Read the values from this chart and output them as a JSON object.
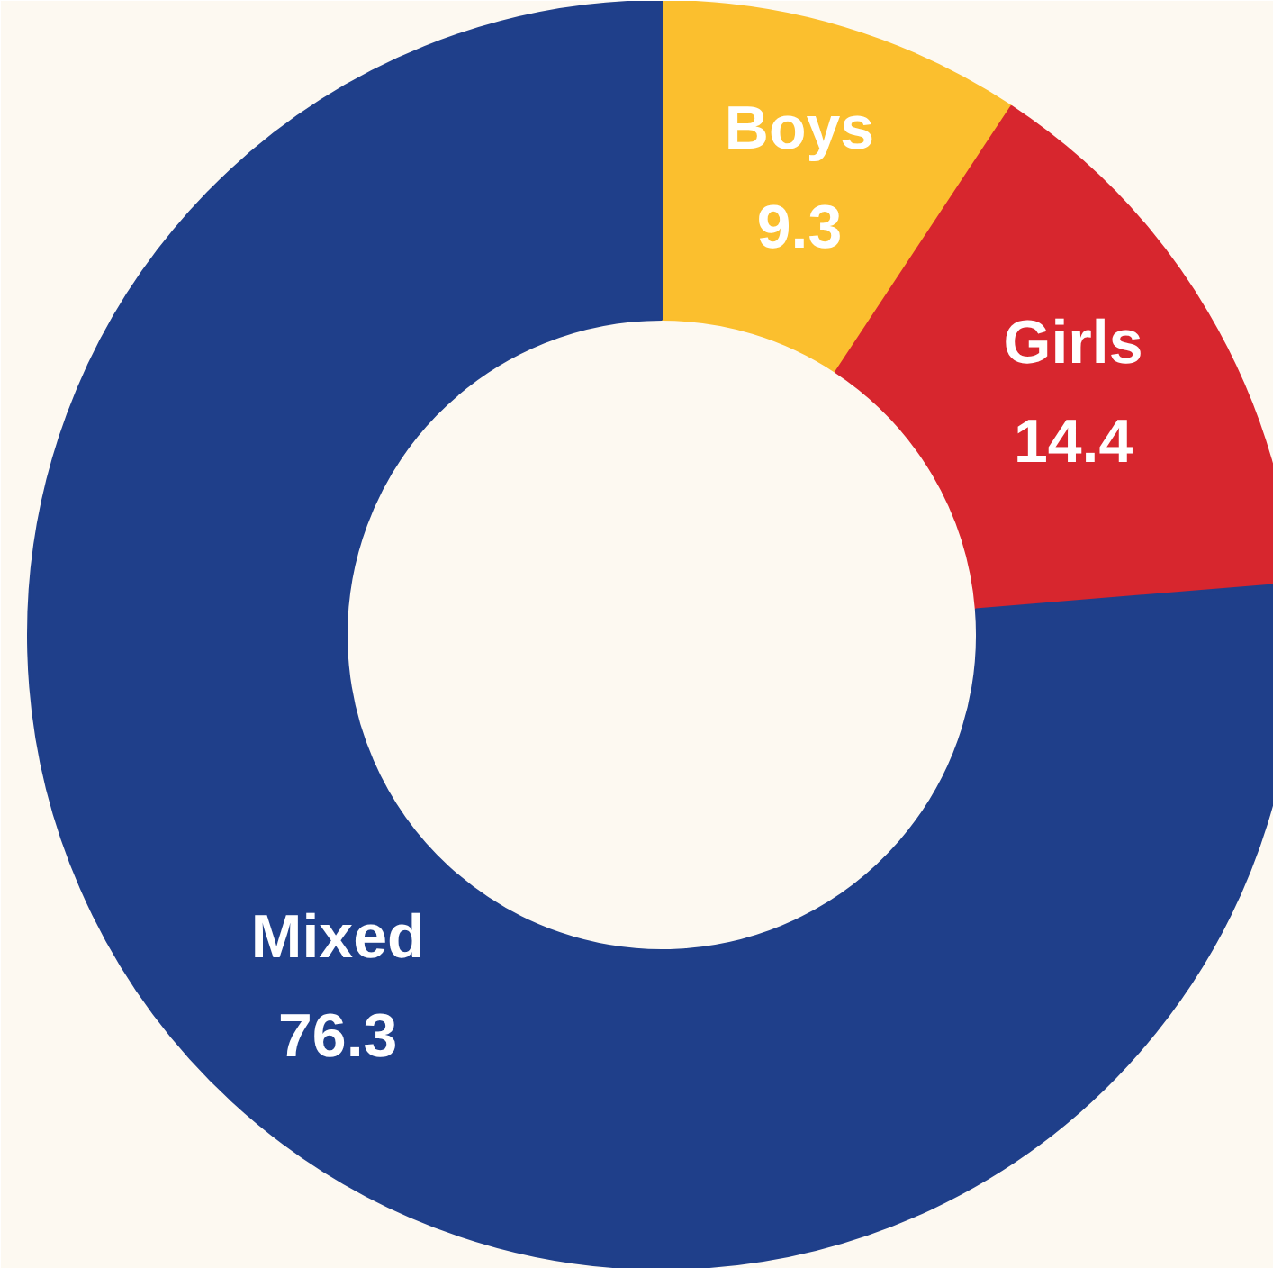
{
  "chart_data": {
    "type": "donut",
    "categories": [
      "Boys",
      "Girls",
      "Mixed"
    ],
    "values": [
      9.3,
      14.4,
      76.3
    ],
    "colors": [
      "#fbbf2e",
      "#d7262e",
      "#1f3f8a"
    ],
    "data_labels": true
  }
}
